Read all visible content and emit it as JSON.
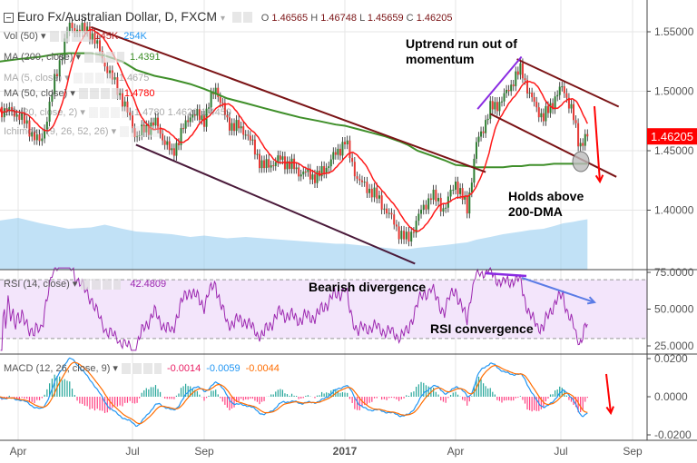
{
  "header": {
    "symbol": "Euro Fx/Australian Dollar, D, FXCM",
    "open_label": "O",
    "open": "1.46565",
    "high_label": "H",
    "high": "1.46748",
    "low_label": "L",
    "low": "1.45659",
    "close_label": "C",
    "close": "1.46205"
  },
  "legends": {
    "vol": {
      "label": "Vol (50)",
      "v1": "145K",
      "v2": "254K"
    },
    "ma200": {
      "label": "MA (200, close)",
      "value": "1.4391"
    },
    "ma_b": {
      "label": "MA (5, close)",
      "value": "1.4675"
    },
    "ma_c": {
      "label": "MA (50, close)",
      "value": "1.4780"
    },
    "bb": {
      "label": "BB (20, close, 2)",
      "value": "1.4780 1.4620 1.4459"
    },
    "ichimoku": {
      "label": "Ichimoku (9, 26, 52, 26)"
    },
    "rsi": {
      "label": "RSI (14, close)",
      "value": "42.4809"
    },
    "macd": {
      "label": "MACD (12, 26, close, 9)",
      "v1": "-0.0014",
      "v2": "-0.0059",
      "v3": "-0.0044"
    }
  },
  "annotations": {
    "uptrend": "Uptrend run out of momentum",
    "holds": "Holds above 200-DMA",
    "bearish": "Bearish divergence",
    "rsi_conv": "RSI convergence"
  },
  "colors": {
    "up": "#2e7d32",
    "down": "#e53935",
    "ma200": "#3f8f2a",
    "ma_fast": "#ff1a1a",
    "trend": "#7b1416",
    "rsi": "#9c27b0",
    "macd": "#2196f3",
    "signal": "#ff6d00",
    "price_badge": "#ff0000"
  },
  "chart_data": {
    "type": "candlestick",
    "price_axis": {
      "ticks": [
        "1.55000",
        "1.50000",
        "1.45000",
        "1.40000"
      ],
      "last": "1.46205"
    },
    "rsi_axis": {
      "ticks": [
        "75.0000",
        "50.0000",
        "25.0000"
      ],
      "band": [
        30,
        70
      ]
    },
    "macd_axis": {
      "ticks": [
        "0.0200",
        "0.0000",
        "-0.0200"
      ]
    },
    "time_axis": [
      {
        "label": "Apr",
        "date": "2016-04-01"
      },
      {
        "label": "Jul",
        "date": "2016-07-01"
      },
      {
        "label": "Sep",
        "date": "2016-09-01"
      },
      {
        "label": "2017",
        "date": "2017-01-01"
      },
      {
        "label": "Apr",
        "date": "2017-04-01"
      },
      {
        "label": "Jul",
        "date": "2017-07-01"
      },
      {
        "label": "Sep",
        "date": "2017-09-01"
      }
    ],
    "dates": [
      "2016-03-17",
      "2016-04-01",
      "2016-04-19",
      "2016-04-30",
      "2016-05-11",
      "2016-05-29",
      "2016-06-09",
      "2016-06-23",
      "2016-07-04",
      "2016-07-20",
      "2016-08-04",
      "2016-08-20",
      "2016-09-01",
      "2016-09-11",
      "2016-09-21",
      "2016-10-07",
      "2016-10-22",
      "2016-11-07",
      "2016-11-23",
      "2016-12-09",
      "2016-12-24",
      "2017-01-01",
      "2017-01-12",
      "2017-01-23",
      "2017-02-03",
      "2017-02-14",
      "2017-02-21",
      "2017-03-01",
      "2017-03-12",
      "2017-03-23",
      "2017-04-01",
      "2017-04-11",
      "2017-04-19",
      "2017-05-01",
      "2017-05-12",
      "2017-05-20",
      "2017-05-28",
      "2017-06-04",
      "2017-06-16",
      "2017-06-25",
      "2017-07-03",
      "2017-07-11",
      "2017-07-17",
      "2017-07-24"
    ],
    "close": [
      1.485,
      1.481,
      1.455,
      1.508,
      1.554,
      1.55,
      1.523,
      1.493,
      1.462,
      1.474,
      1.447,
      1.481,
      1.477,
      1.504,
      1.474,
      1.466,
      1.436,
      1.443,
      1.432,
      1.428,
      1.447,
      1.458,
      1.424,
      1.416,
      1.401,
      1.382,
      1.374,
      1.393,
      1.413,
      1.401,
      1.424,
      1.401,
      1.455,
      1.485,
      1.493,
      1.508,
      1.519,
      1.496,
      1.477,
      1.493,
      1.504,
      1.481,
      1.455,
      1.462
    ],
    "ma200": [
      1.525,
      1.527,
      1.529,
      1.531,
      1.532,
      1.532,
      1.53,
      1.525,
      1.518,
      1.513,
      1.51,
      1.506,
      1.502,
      1.498,
      1.494,
      1.49,
      1.486,
      1.482,
      1.478,
      1.475,
      1.472,
      1.471,
      1.468,
      1.465,
      1.462,
      1.458,
      1.455,
      1.45,
      1.446,
      1.442,
      1.438,
      1.437,
      1.436,
      1.436,
      1.436,
      1.437,
      1.437,
      1.438,
      1.438,
      1.439,
      1.439,
      1.439,
      1.439,
      1.439
    ],
    "volume": [
      180,
      190,
      170,
      160,
      150,
      155,
      165,
      150,
      140,
      135,
      130,
      120,
      125,
      120,
      115,
      120,
      115,
      110,
      105,
      100,
      95,
      95,
      90,
      85,
      80,
      75,
      75,
      80,
      85,
      90,
      95,
      100,
      110,
      120,
      130,
      135,
      140,
      145,
      150,
      160,
      170,
      175,
      180,
      185
    ],
    "trendlines": [
      {
        "from": [
          "2016-05-29",
          1.554
        ],
        "to": [
          "2017-04-27",
          1.432
        ],
        "color": "#7b1416"
      },
      {
        "from": [
          "2016-07-04",
          1.455
        ],
        "to": [
          "2017-02-27",
          1.355
        ],
        "color": "#4a1a3a"
      },
      {
        "from": [
          "2017-05-24",
          1.527
        ],
        "to": [
          "2017-08-20",
          1.487
        ],
        "color": "#7b1416"
      },
      {
        "from": [
          "2017-05-01",
          1.481
        ],
        "to": [
          "2017-08-18",
          1.428
        ],
        "color": "#7b1416"
      },
      {
        "from": [
          "2017-04-20",
          1.485
        ],
        "to": [
          "2017-05-28",
          1.529
        ],
        "color": "#8a2be2"
      }
    ]
  }
}
